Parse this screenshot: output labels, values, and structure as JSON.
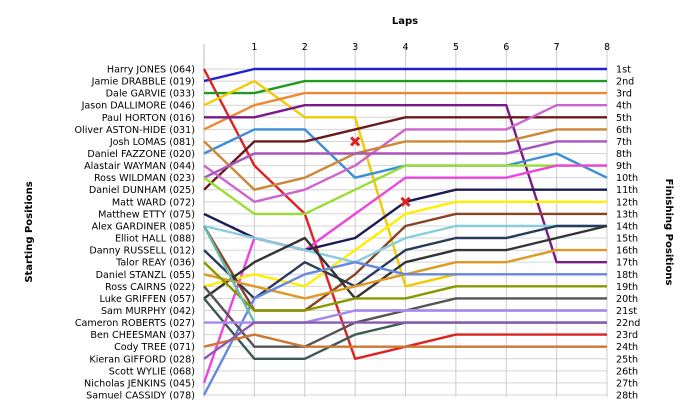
{
  "chart_data": {
    "type": "line",
    "title": "Laps",
    "ylabel_left": "Starting Positions",
    "ylabel_right": "Finishing Positions",
    "x": [
      0,
      1,
      2,
      3,
      4,
      5,
      6,
      7,
      8
    ],
    "x_ticks": [
      "1",
      "2",
      "3",
      "4",
      "5",
      "6",
      "7",
      "8"
    ],
    "xlim": [
      0,
      8
    ],
    "ylim": [
      1,
      28
    ],
    "y_direction": "descending",
    "grid": true,
    "starting_labels": [
      "Harry JONES (064)",
      "Jamie DRABBLE (019)",
      "Dale GARVIE (033)",
      "Jason DALLIMORE (046)",
      "Paul HORTON (016)",
      "Oliver ASTON-HIDE (031)",
      "Josh LOMAS (081)",
      "Daniel FAZZONE (020)",
      "Alastair WAYMAN (044)",
      "Ross WILDMAN (023)",
      "Daniel DUNHAM (025)",
      "Matt WARD (072)",
      "Matthew ETTY (075)",
      "Alex GARDINER (085)",
      "Elliot HALL (088)",
      "Danny RUSSELL (012)",
      "Talor REAY (036)",
      "Daniel STANZL (055)",
      "Ross CAIRNS (022)",
      "Luke GRIFFEN (057)",
      "Sam MURPHY (042)",
      "Cameron ROBERTS (027)",
      "Ben CHEESMAN (037)",
      "Cody TREE (071)",
      "Kieran GIFFORD (028)",
      "Scott WYLIE (068)",
      "Nicholas JENKINS (045)",
      "Samuel CASSIDY (078)"
    ],
    "finishing_labels": [
      "1st",
      "2nd",
      "3rd",
      "4th",
      "5th",
      "6th",
      "7th",
      "8th",
      "9th",
      "10th",
      "11th",
      "12th",
      "13th",
      "14th",
      "15th",
      "16th",
      "17th",
      "18th",
      "19th",
      "20th",
      "21st",
      "22nd",
      "23rd",
      "24th",
      "25th",
      "26th",
      "27th",
      "28th"
    ],
    "series": [
      {
        "color": "#2222cc",
        "values": [
          2,
          1,
          1,
          1,
          1,
          1,
          1,
          1,
          1
        ]
      },
      {
        "color": "#dd2222",
        "values": [
          1,
          9,
          13,
          25,
          24,
          23,
          23,
          23,
          23
        ]
      },
      {
        "color": "#229922",
        "values": [
          3,
          3,
          2,
          2,
          2,
          2,
          2,
          2,
          2
        ]
      },
      {
        "color": "#eecc00",
        "values": [
          4,
          2,
          5,
          5,
          19,
          18,
          18,
          18,
          18
        ]
      },
      {
        "color": "#ee8833",
        "values": [
          6,
          4,
          3,
          3,
          3,
          3,
          3,
          3,
          3
        ]
      },
      {
        "color": "#7a1a8a",
        "values": [
          5,
          5,
          4,
          4,
          4,
          4,
          4,
          17,
          17
        ]
      },
      {
        "color": "#3a8fd8",
        "values": [
          8,
          6,
          6,
          10,
          9,
          9,
          9,
          8,
          10
        ]
      },
      {
        "color": "#6a1a1a",
        "values": [
          11,
          7,
          7,
          6,
          5,
          5,
          5,
          5,
          5
        ]
      },
      {
        "color": "#cc66cc",
        "values": [
          9,
          12,
          11,
          9,
          6,
          6,
          6,
          4,
          4
        ]
      },
      {
        "color": "#cc8833",
        "values": [
          7,
          11,
          10,
          8,
          7,
          7,
          7,
          6,
          6
        ]
      },
      {
        "color": "#aa55bb",
        "values": [
          10,
          8,
          8,
          8,
          8,
          8,
          8,
          7,
          7
        ]
      },
      {
        "color": "#99dd33",
        "values": [
          10,
          13,
          13,
          11,
          9,
          9,
          9,
          9,
          9
        ]
      },
      {
        "color": "#ee44dd",
        "values": [
          27,
          15,
          16,
          13,
          10,
          10,
          10,
          9,
          9
        ]
      },
      {
        "color": "#1a1a55",
        "values": [
          13,
          15,
          16,
          15,
          12,
          11,
          11,
          11,
          11
        ]
      },
      {
        "color": "#ffee00",
        "values": [
          19,
          18,
          19,
          16,
          13,
          12,
          12,
          12,
          12
        ]
      },
      {
        "color": "#884422",
        "values": [
          14,
          21,
          21,
          18,
          14,
          13,
          13,
          13,
          13
        ]
      },
      {
        "color": "#88ccdd",
        "values": [
          14,
          15,
          16,
          17,
          15,
          14,
          14,
          14,
          14
        ]
      },
      {
        "color": "#2a3a5a",
        "values": [
          16,
          20,
          17,
          19,
          16,
          15,
          15,
          14,
          14
        ]
      },
      {
        "color": "#333333",
        "values": [
          20,
          17,
          15,
          20,
          17,
          16,
          16,
          15,
          14
        ]
      },
      {
        "color": "#dd9922",
        "values": [
          18,
          19,
          20,
          19,
          18,
          17,
          17,
          16,
          16
        ]
      },
      {
        "color": "#6688dd",
        "values": [
          28,
          20,
          18,
          17,
          18,
          18,
          18,
          18,
          18
        ]
      },
      {
        "color": "#889900",
        "values": [
          17,
          21,
          21,
          20,
          20,
          19,
          19,
          19,
          19
        ]
      },
      {
        "color": "#555555",
        "values": [
          19,
          24,
          24,
          22,
          21,
          20,
          20,
          20,
          20
        ]
      },
      {
        "color": "#66bbaa",
        "values": [
          14,
          22,
          22,
          21,
          21,
          21,
          21,
          21,
          21
        ]
      },
      {
        "color": "#3c5a55",
        "values": [
          20,
          25,
          25,
          23,
          22,
          22,
          22,
          22,
          22
        ]
      },
      {
        "color": "#aa88ee",
        "values": [
          22,
          22,
          22,
          21,
          21,
          21,
          21,
          21,
          21
        ]
      },
      {
        "color": "#cc7733",
        "values": [
          24,
          23,
          24,
          24,
          24,
          24,
          24,
          24,
          24
        ]
      },
      {
        "color": "#8a5ab0",
        "values": [
          25,
          22,
          22,
          22,
          22,
          22,
          22,
          22,
          22
        ]
      }
    ],
    "markers": [
      {
        "type": "x",
        "x": 3,
        "y": 7,
        "color": "#dd2222"
      },
      {
        "type": "x",
        "x": 4,
        "y": 12,
        "color": "#dd2222"
      }
    ]
  }
}
